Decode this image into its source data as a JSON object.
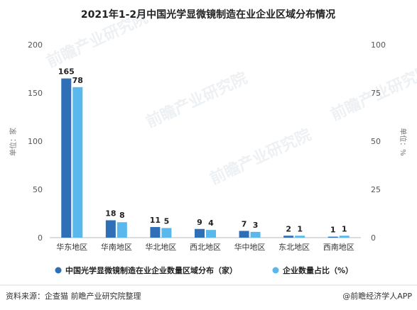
{
  "chart_data": {
    "type": "bar",
    "title": "2021年1-2月中国光学显微镜制造在业企业区域分布情况",
    "categories": [
      "华东地区",
      "华南地区",
      "华北地区",
      "西北地区",
      "华中地区",
      "东北地区",
      "西南地区"
    ],
    "series": [
      {
        "name": "中国光学显微镜制造在业企业数量区域分布（家）",
        "values": [
          165,
          18,
          11,
          9,
          7,
          2,
          1
        ],
        "axis": "left",
        "color": "#2e6fb7"
      },
      {
        "name": "企业数量占比（%）",
        "values": [
          78,
          8,
          5,
          4,
          3,
          1,
          1
        ],
        "axis": "right",
        "color": "#5bb8ec"
      }
    ],
    "ylabel_left": "单位：家",
    "ylabel_right": "单位：%",
    "ylim_left": [
      0,
      200
    ],
    "ylim_right": [
      0,
      100
    ],
    "yticks_left": [
      "0",
      "50",
      "100",
      "150",
      "200"
    ],
    "yticks_right": [
      "0",
      "25",
      "50",
      "75",
      "100"
    ],
    "legend_position": "bottom",
    "grid": false
  },
  "footer": {
    "source": "资料来源：企查猫 前瞻产业研究院整理",
    "brand": "@前瞻经济学人APP"
  },
  "watermark": {
    "text": "前瞻产业研究院"
  }
}
